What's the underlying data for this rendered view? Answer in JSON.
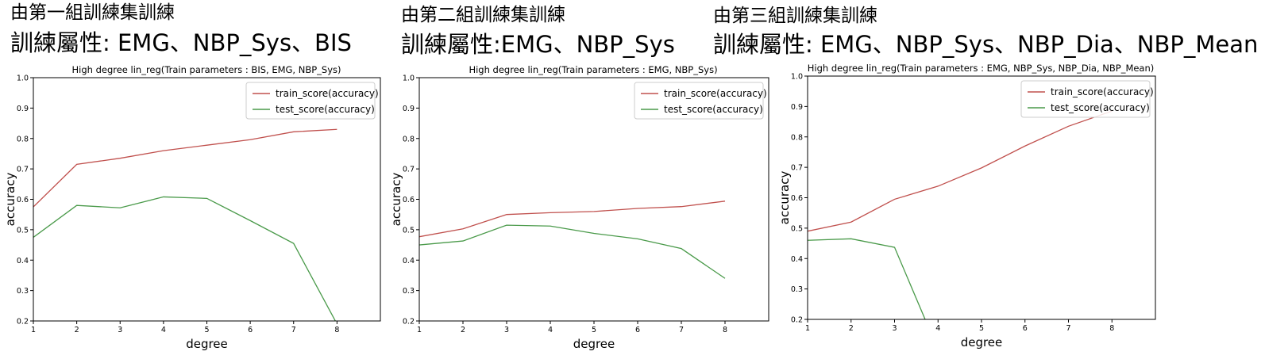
{
  "panels": [
    {
      "group_title": "由第一組訓練集訓練",
      "params_title": "訓練屬性: EMG、NBP_Sys、BIS"
    },
    {
      "group_title": "由第二組訓練集訓練",
      "params_title": "訓練屬性:EMG、NBP_Sys"
    },
    {
      "group_title": "由第三組訓練集訓練",
      "params_title": "訓練屬性: EMG、NBP_Sys、NBP_Dia、NBP_Mean"
    }
  ],
  "colors": {
    "train": "#c0504d",
    "test": "#4a9a4a",
    "axis": "#000000"
  },
  "chart_data": [
    {
      "type": "line",
      "title": "High degree lin_reg(Train parameters : BIS, EMG, NBP_Sys)",
      "xlabel": "degree",
      "ylabel": "accuracy",
      "x": [
        1,
        2,
        3,
        4,
        5,
        6,
        7,
        8
      ],
      "xlim": [
        1,
        9
      ],
      "ylim": [
        0.2,
        1.0
      ],
      "xticks": [
        "1",
        "2",
        "3",
        "4",
        "5",
        "6",
        "7",
        "8"
      ],
      "yticks": [
        "0.2",
        "0.3",
        "0.4",
        "0.5",
        "0.6",
        "0.7",
        "0.8",
        "0.9",
        "1.0"
      ],
      "legend_position": "top-right",
      "series": [
        {
          "name": "train_score(accuracy)",
          "values": [
            0.575,
            0.715,
            0.735,
            0.76,
            0.778,
            0.796,
            0.822,
            0.83
          ]
        },
        {
          "name": "test_score(accuracy)",
          "values": [
            0.475,
            0.58,
            0.572,
            0.608,
            0.603,
            0.53,
            0.455,
            0.19
          ]
        }
      ]
    },
    {
      "type": "line",
      "title": "High degree lin_reg(Train parameters : EMG, NBP_Sys)",
      "xlabel": "degree",
      "ylabel": "accuracy",
      "x": [
        1,
        2,
        3,
        4,
        5,
        6,
        7,
        8
      ],
      "xlim": [
        1,
        9
      ],
      "ylim": [
        0.2,
        1.0
      ],
      "xticks": [
        "1",
        "2",
        "3",
        "4",
        "5",
        "6",
        "7",
        "8"
      ],
      "yticks": [
        "0.2",
        "0.3",
        "0.4",
        "0.5",
        "0.6",
        "0.7",
        "0.8",
        "0.9",
        "1.0"
      ],
      "legend_position": "top-right",
      "series": [
        {
          "name": "train_score(accuracy)",
          "values": [
            0.477,
            0.503,
            0.55,
            0.556,
            0.56,
            0.57,
            0.576,
            0.594
          ]
        },
        {
          "name": "test_score(accuracy)",
          "values": [
            0.45,
            0.463,
            0.515,
            0.512,
            0.488,
            0.47,
            0.438,
            0.34
          ]
        }
      ]
    },
    {
      "type": "line",
      "title": "High degree lin_reg(Train parameters : EMG, NBP_Sys, NBP_Dia, NBP_Mean)",
      "xlabel": "degree",
      "ylabel": "accuracy",
      "x": [
        1,
        2,
        3,
        4,
        5,
        6,
        7,
        8
      ],
      "xlim": [
        1,
        9
      ],
      "ylim": [
        0.2,
        1.0
      ],
      "xticks": [
        "1",
        "2",
        "3",
        "4",
        "5",
        "6",
        "7",
        "8"
      ],
      "yticks": [
        "0.2",
        "0.3",
        "0.4",
        "0.5",
        "0.6",
        "0.7",
        "0.8",
        "0.9",
        "1.0"
      ],
      "legend_position": "top-right",
      "series": [
        {
          "name": "train_score(accuracy)",
          "values": [
            0.49,
            0.52,
            0.595,
            0.638,
            0.698,
            0.77,
            0.835,
            0.885
          ]
        },
        {
          "name": "test_score(accuracy)",
          "values": [
            0.46,
            0.465,
            0.437,
            0.1,
            null,
            null,
            null,
            null
          ]
        }
      ]
    }
  ]
}
